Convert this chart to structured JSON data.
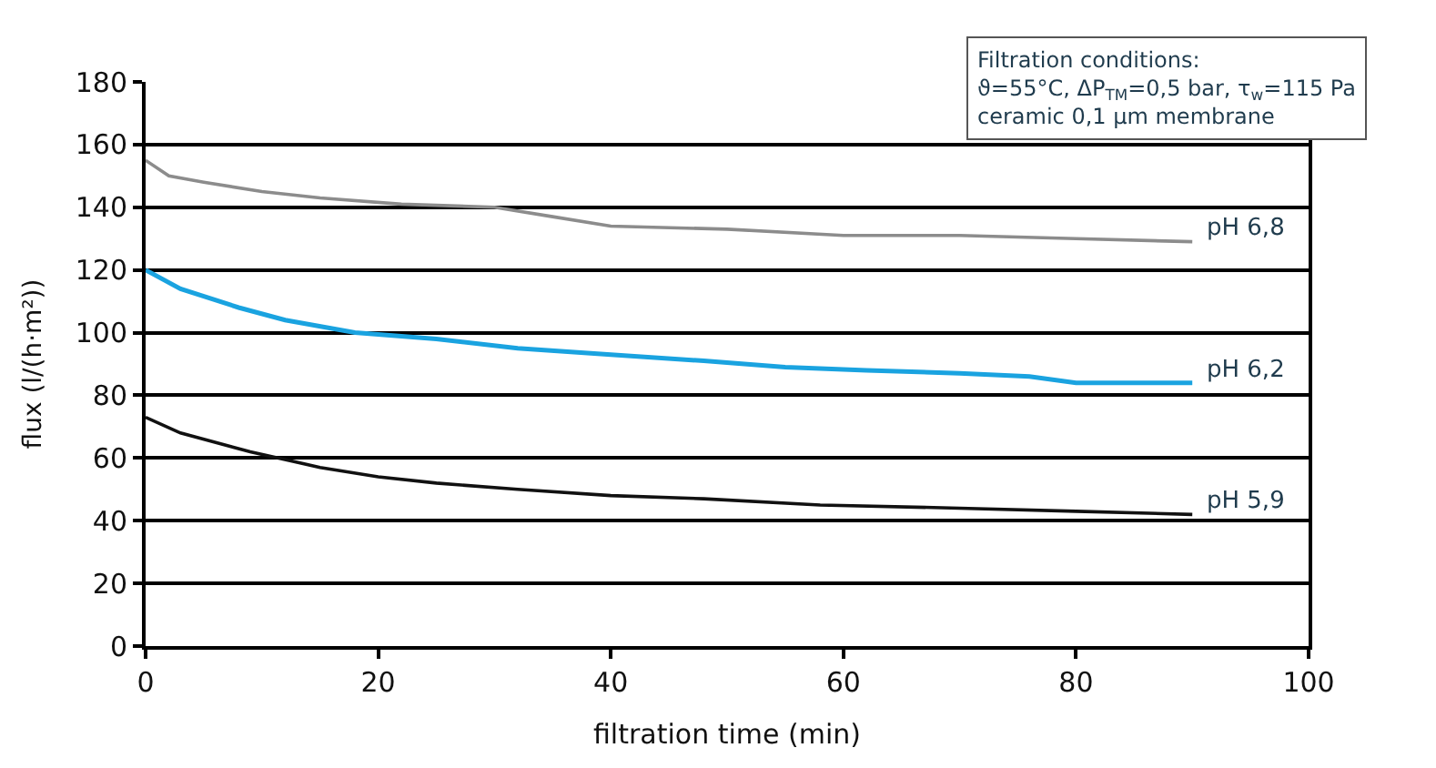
{
  "chart_data": {
    "type": "line",
    "xlabel": "filtration time (min)",
    "ylabel": "flux (l/(h·m²))",
    "xlim": [
      0,
      100
    ],
    "xticks": [
      0,
      20,
      40,
      60,
      80,
      100
    ],
    "ylim": [
      0,
      180
    ],
    "yticks": [
      0,
      20,
      40,
      60,
      80,
      100,
      120,
      140,
      160,
      180
    ],
    "grid": "y",
    "legend": false,
    "marker": "none",
    "line_style": "solid",
    "annotations": [
      "Filtration conditions:\nϑ=55°C, ΔP$_{TM}$=0,5 bar, τ$_{w}$=115 Pa\nceramic 0,1 µm membrane"
    ],
    "series": [
      {
        "name": "pH 6,8",
        "color": "#8c8c8c",
        "x": [
          0,
          2,
          5,
          10,
          15,
          22,
          30,
          35,
          40,
          50,
          60,
          70,
          80,
          90
        ],
        "values": [
          155,
          150,
          148,
          145,
          143,
          141,
          140,
          137,
          134,
          133,
          131,
          131,
          130,
          129
        ]
      },
      {
        "name": "pH 6,2",
        "color": "#1aa3e0",
        "x": [
          0,
          3,
          8,
          12,
          18,
          25,
          32,
          40,
          48,
          55,
          62,
          70,
          76,
          80,
          90
        ],
        "values": [
          120,
          114,
          108,
          104,
          100,
          98,
          95,
          93,
          91,
          89,
          88,
          87,
          86,
          84,
          84
        ]
      },
      {
        "name": "pH 5,9",
        "color": "#111111",
        "x": [
          0,
          3,
          9,
          15,
          20,
          25,
          32,
          40,
          48,
          58,
          70,
          80,
          90
        ],
        "values": [
          73,
          68,
          62,
          57,
          54,
          52,
          50,
          48,
          47,
          45,
          44,
          43,
          42
        ]
      }
    ]
  }
}
